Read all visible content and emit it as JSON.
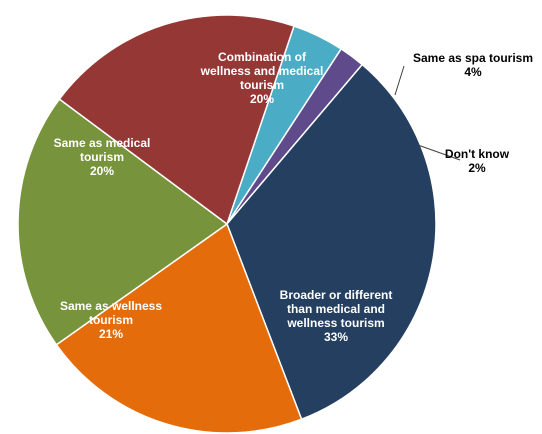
{
  "chart_data": {
    "type": "pie",
    "title": "",
    "slices": [
      {
        "label_lines": [
          "Same as spa tourism"
        ],
        "percent_label": "4%",
        "value": 4,
        "color": "#4BACC6",
        "label_color": "#000000",
        "label_position": "outside"
      },
      {
        "label_lines": [
          "Don't know"
        ],
        "percent_label": "2%",
        "value": 2,
        "color": "#5F4B8B",
        "label_color": "#000000",
        "label_position": "outside"
      },
      {
        "label_lines": [
          "Broader or different",
          "than medical and",
          "wellness tourism"
        ],
        "percent_label": "33%",
        "value": 33,
        "color": "#243F60",
        "label_color": "#FFFFFF",
        "label_position": "inside"
      },
      {
        "label_lines": [
          "Same as wellness",
          "tourism"
        ],
        "percent_label": "21%",
        "value": 21,
        "color": "#E46C0A",
        "label_color": "#FFFFFF",
        "label_position": "inside"
      },
      {
        "label_lines": [
          "Same as medical",
          "tourism"
        ],
        "percent_label": "20%",
        "value": 20,
        "color": "#77933C",
        "label_color": "#FFFFFF",
        "label_position": "inside"
      },
      {
        "label_lines": [
          "Combination of",
          "wellness and medical",
          "tourism"
        ],
        "percent_label": "20%",
        "value": 20,
        "color": "#953735",
        "label_color": "#FFFFFF",
        "label_position": "inside"
      }
    ]
  }
}
